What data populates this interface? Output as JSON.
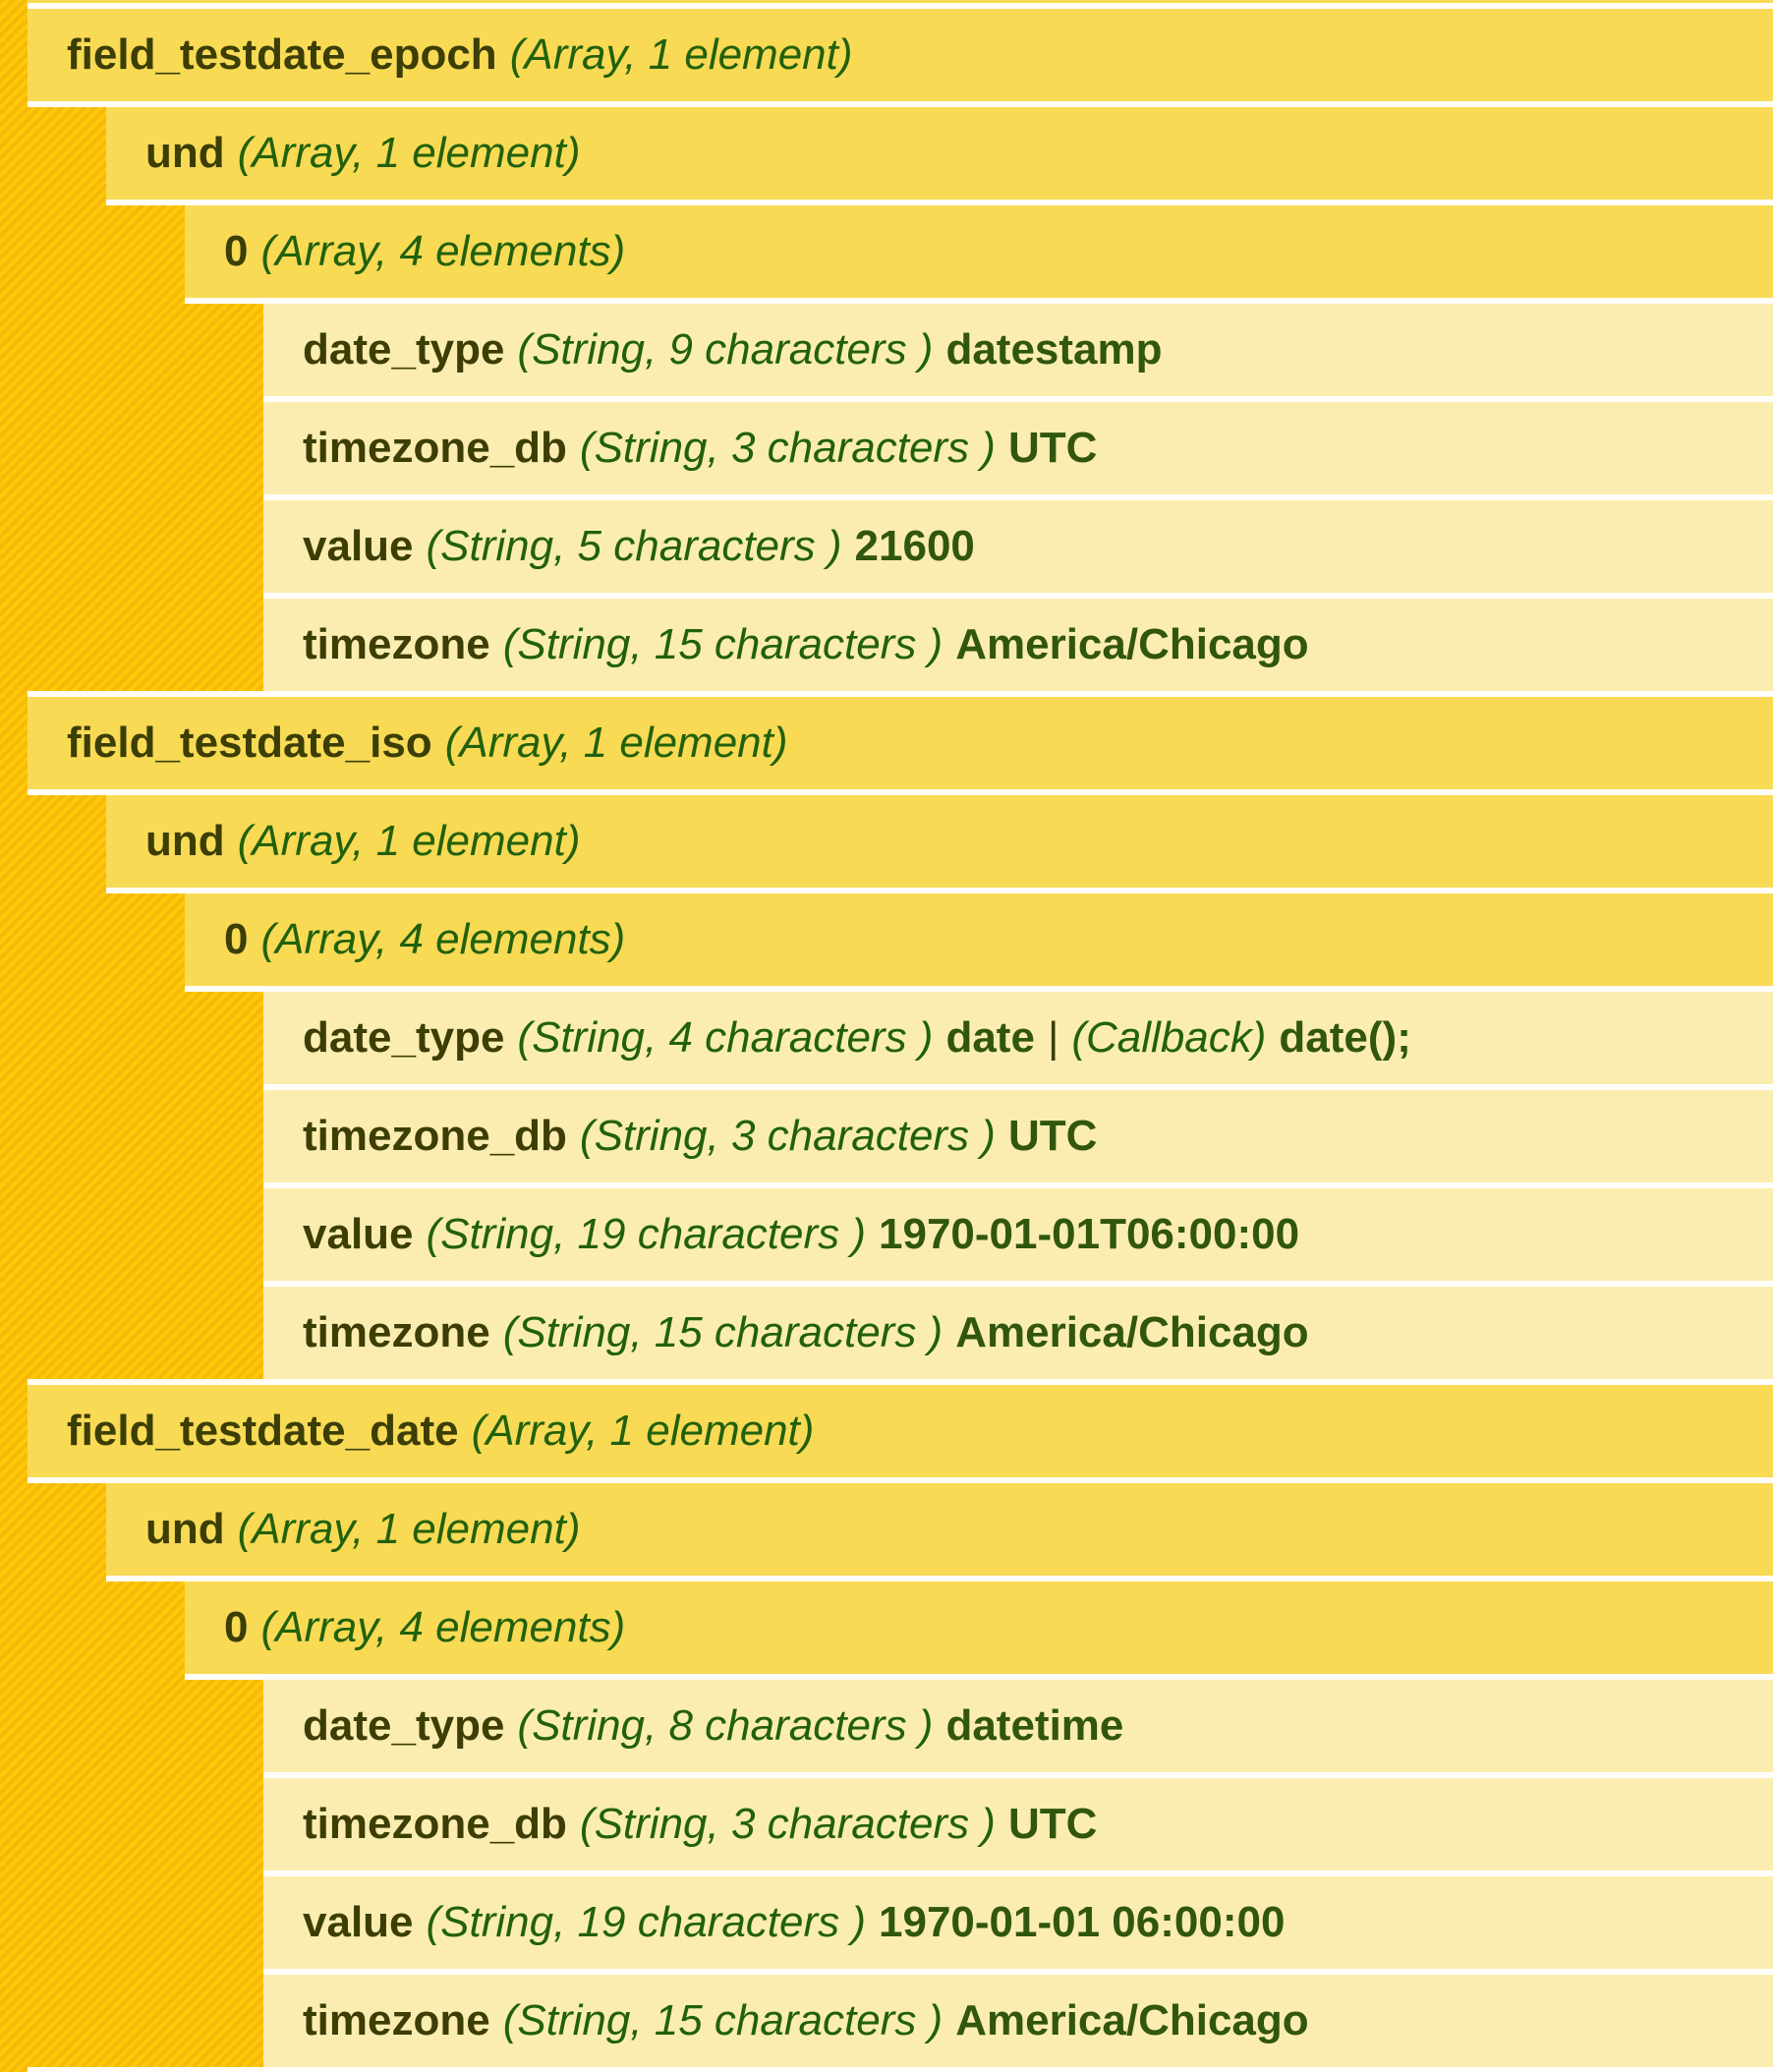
{
  "theme": {
    "stripe_dark": "#f5b909",
    "stripe_light": "#ffc90a",
    "parent_row_bg": "#f8da55",
    "leaf_row_bg": "#fbedb0",
    "gap_color": "#fffefa",
    "key_text_color": "#3c3e06",
    "type_text_color": "#22610b",
    "value_text_color": "#31560e"
  },
  "groups": [
    {
      "label": "field_testdate_epoch",
      "type": "(Array, 1 element)",
      "und": {
        "label": "und",
        "type": "(Array, 1 element)"
      },
      "zero": {
        "label": "0",
        "type": "(Array, 4 elements)"
      },
      "items": [
        {
          "key": "date_type",
          "type": "(String, 9 characters )",
          "value": "datestamp"
        },
        {
          "key": "timezone_db",
          "type": "(String, 3 characters )",
          "value": "UTC"
        },
        {
          "key": "value",
          "type": "(String, 5 characters )",
          "value": "21600"
        },
        {
          "key": "timezone",
          "type": "(String, 15 characters )",
          "value": "America/Chicago"
        }
      ]
    },
    {
      "label": "field_testdate_iso",
      "type": "(Array, 1 element)",
      "und": {
        "label": "und",
        "type": "(Array, 1 element)"
      },
      "zero": {
        "label": "0",
        "type": "(Array, 4 elements)"
      },
      "items": [
        {
          "key": "date_type",
          "type": "(String, 4 characters )",
          "value": "date",
          "sep": "|",
          "type2": "(Callback)",
          "value2": "date();"
        },
        {
          "key": "timezone_db",
          "type": "(String, 3 characters )",
          "value": "UTC"
        },
        {
          "key": "value",
          "type": "(String, 19 characters )",
          "value": "1970-01-01T06:00:00"
        },
        {
          "key": "timezone",
          "type": "(String, 15 characters )",
          "value": "America/Chicago"
        }
      ]
    },
    {
      "label": "field_testdate_date",
      "type": "(Array, 1 element)",
      "und": {
        "label": "und",
        "type": "(Array, 1 element)"
      },
      "zero": {
        "label": "0",
        "type": "(Array, 4 elements)"
      },
      "items": [
        {
          "key": "date_type",
          "type": "(String, 8 characters )",
          "value": "datetime"
        },
        {
          "key": "timezone_db",
          "type": "(String, 3 characters )",
          "value": "UTC"
        },
        {
          "key": "value",
          "type": "(String, 19 characters )",
          "value": "1970-01-01 06:00:00"
        },
        {
          "key": "timezone",
          "type": "(String, 15 characters )",
          "value": "America/Chicago"
        }
      ]
    }
  ]
}
